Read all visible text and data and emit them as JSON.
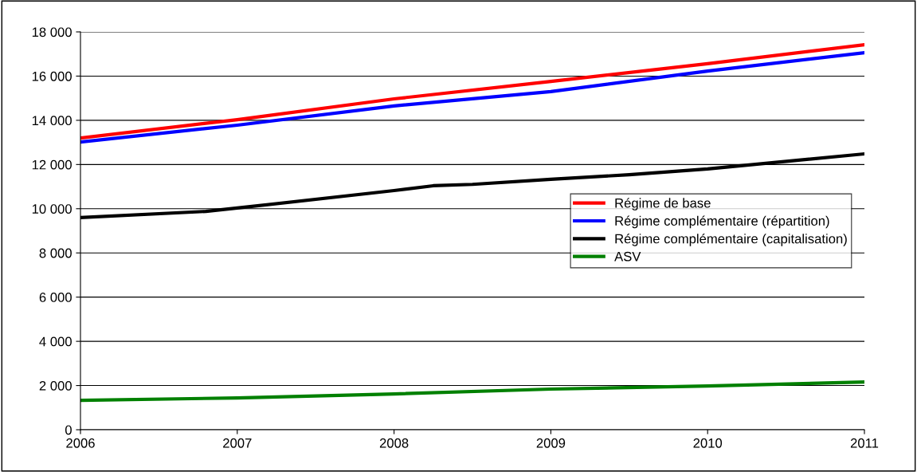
{
  "chart_data": {
    "type": "line",
    "xlim": [
      2006,
      2011
    ],
    "xticks": [
      2006,
      2007,
      2008,
      2009,
      2010,
      2011
    ],
    "ylim": [
      0,
      18000
    ],
    "yticks": [
      {
        "value": 0,
        "label": "0"
      },
      {
        "value": 2000,
        "label": "2 000"
      },
      {
        "value": 4000,
        "label": "4 000"
      },
      {
        "value": 6000,
        "label": "6 000"
      },
      {
        "value": 8000,
        "label": "8 000"
      },
      {
        "value": 10000,
        "label": "10 000"
      },
      {
        "value": 12000,
        "label": "12 000"
      },
      {
        "value": 14000,
        "label": "14 000"
      },
      {
        "value": 16000,
        "label": "16 000"
      },
      {
        "value": 18000,
        "label": "18 000"
      }
    ],
    "grid": "y",
    "legend": "right",
    "marker": "none",
    "line_style": "solid",
    "series": [
      {
        "name": "Régime de base",
        "color": "#ff0000",
        "x": [
          2006,
          2007,
          2008,
          2009,
          2010,
          2011
        ],
        "values": [
          13200,
          14030,
          14970,
          15760,
          16560,
          17420
        ]
      },
      {
        "name": "Régime complémentaire (répartition)",
        "color": "#0000ff",
        "x": [
          2006,
          2007,
          2008,
          2009,
          2010,
          2011
        ],
        "values": [
          13020,
          13780,
          14650,
          15300,
          16230,
          17060
        ]
      },
      {
        "name": "Régime complémentaire (capitalisation)",
        "color": "#000000",
        "x": [
          2006,
          2006.8,
          2007,
          2008,
          2008.25,
          2008.5,
          2009,
          2009.5,
          2010,
          2011
        ],
        "values": [
          9600,
          9880,
          10030,
          10820,
          11040,
          11100,
          11330,
          11540,
          11800,
          12480
        ]
      },
      {
        "name": "ASV",
        "color": "#008000",
        "x": [
          2006,
          2007,
          2008,
          2009,
          2010,
          2011
        ],
        "values": [
          1330,
          1440,
          1620,
          1840,
          1980,
          2160
        ]
      }
    ]
  }
}
